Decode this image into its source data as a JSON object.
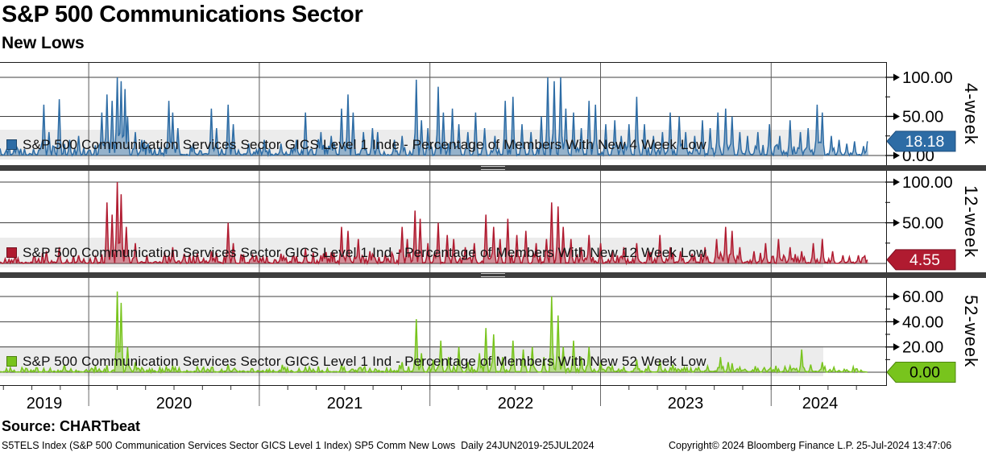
{
  "header": {
    "title": "S&P 500 Communications Sector",
    "subtitle": "New Lows"
  },
  "x_axis": {
    "year_labels": [
      "2019",
      "2020",
      "2021",
      "2022",
      "2023",
      "2024"
    ],
    "start_decimal_year": 2019.48,
    "end_decimal_year": 2024.57,
    "range_text": "24JUN2019-25JUL2024",
    "minor_tick_interval_years": 0.1667
  },
  "chart_data": [
    {
      "type": "area",
      "panel_label": "4-week",
      "legend": "S&P 500 Communication Services Sector GICS Level 1 Inde - Percentage of Members With New 4 Week Low",
      "line_color": "#2d6ca5",
      "fill_opacity": 0.45,
      "tag_border": "#1d4d7c",
      "tag_text_color": "#ffffff",
      "tag_label": "18.18",
      "last_value": 18.18,
      "x_unit": "decimal_year",
      "ylim": [
        0,
        118.5
      ],
      "yticks": [
        {
          "v": 100,
          "label": "100.00"
        },
        {
          "v": 50,
          "label": "50.00"
        },
        {
          "v": 0,
          "label": "0.00"
        }
      ],
      "minor_yticks": [
        75,
        25
      ],
      "noise_amp": 1.0,
      "keypoints": [
        [
          2019.74,
          65
        ],
        [
          2019.77,
          30
        ],
        [
          2019.83,
          72
        ],
        [
          2019.89,
          20
        ],
        [
          2019.94,
          25
        ],
        [
          2020.08,
          55
        ],
        [
          2020.11,
          78
        ],
        [
          2020.14,
          70
        ],
        [
          2020.17,
          100
        ],
        [
          2020.19,
          95
        ],
        [
          2020.21,
          85
        ],
        [
          2020.23,
          50
        ],
        [
          2020.27,
          30
        ],
        [
          2020.31,
          20
        ],
        [
          2020.47,
          70
        ],
        [
          2020.49,
          55
        ],
        [
          2020.52,
          35
        ],
        [
          2020.61,
          15
        ],
        [
          2020.72,
          60
        ],
        [
          2020.75,
          35
        ],
        [
          2020.82,
          65
        ],
        [
          2020.85,
          40
        ],
        [
          2020.94,
          15
        ],
        [
          2021.03,
          20
        ],
        [
          2021.13,
          15
        ],
        [
          2021.22,
          20
        ],
        [
          2021.27,
          55
        ],
        [
          2021.36,
          30
        ],
        [
          2021.42,
          25
        ],
        [
          2021.48,
          60
        ],
        [
          2021.52,
          78
        ],
        [
          2021.55,
          55
        ],
        [
          2021.61,
          30
        ],
        [
          2021.66,
          35
        ],
        [
          2021.69,
          30
        ],
        [
          2021.79,
          20
        ],
        [
          2021.84,
          25
        ],
        [
          2021.92,
          97
        ],
        [
          2021.95,
          45
        ],
        [
          2021.99,
          35
        ],
        [
          2022.05,
          88
        ],
        [
          2022.08,
          55
        ],
        [
          2022.13,
          60
        ],
        [
          2022.17,
          40
        ],
        [
          2022.22,
          30
        ],
        [
          2022.27,
          55
        ],
        [
          2022.32,
          35
        ],
        [
          2022.38,
          25
        ],
        [
          2022.44,
          70
        ],
        [
          2022.49,
          75
        ],
        [
          2022.54,
          40
        ],
        [
          2022.59,
          30
        ],
        [
          2022.65,
          50
        ],
        [
          2022.69,
          100
        ],
        [
          2022.73,
          95
        ],
        [
          2022.77,
          100
        ],
        [
          2022.8,
          60
        ],
        [
          2022.84,
          55
        ],
        [
          2022.89,
          35
        ],
        [
          2022.93,
          70
        ],
        [
          2022.97,
          65
        ],
        [
          2023.03,
          40
        ],
        [
          2023.08,
          45
        ],
        [
          2023.12,
          25
        ],
        [
          2023.17,
          40
        ],
        [
          2023.21,
          75
        ],
        [
          2023.26,
          40
        ],
        [
          2023.31,
          25
        ],
        [
          2023.36,
          30
        ],
        [
          2023.41,
          55
        ],
        [
          2023.46,
          50
        ],
        [
          2023.5,
          30
        ],
        [
          2023.55,
          25
        ],
        [
          2023.6,
          45
        ],
        [
          2023.64,
          35
        ],
        [
          2023.69,
          55
        ],
        [
          2023.73,
          60
        ],
        [
          2023.77,
          50
        ],
        [
          2023.82,
          30
        ],
        [
          2023.86,
          25
        ],
        [
          2023.92,
          30
        ],
        [
          2023.99,
          40
        ],
        [
          2024.05,
          25
        ],
        [
          2024.11,
          45
        ],
        [
          2024.17,
          30
        ],
        [
          2024.22,
          35
        ],
        [
          2024.27,
          65
        ],
        [
          2024.3,
          55
        ],
        [
          2024.35,
          25
        ],
        [
          2024.4,
          20
        ],
        [
          2024.44,
          15
        ],
        [
          2024.49,
          18
        ],
        [
          2024.54,
          12
        ],
        [
          2024.57,
          18.18
        ]
      ]
    },
    {
      "type": "area",
      "panel_label": "12-week",
      "legend": "S&P 500 Communication Services Sector GICS Level 1 Ind - Percentage of Members With New 12 Week Low",
      "line_color": "#b01b30",
      "fill_opacity": 0.45,
      "tag_border": "#7c0f22",
      "tag_text_color": "#ffffff",
      "tag_label": "4.55",
      "last_value": 4.55,
      "x_unit": "decimal_year",
      "ylim": [
        0,
        113.9
      ],
      "yticks": [
        {
          "v": 100,
          "label": "100.00"
        },
        {
          "v": 50,
          "label": "50.00"
        },
        {
          "v": 0,
          "label": ""
        }
      ],
      "minor_yticks": [
        75,
        25
      ],
      "noise_amp": 0.9,
      "keypoints": [
        [
          2019.75,
          15
        ],
        [
          2019.83,
          20
        ],
        [
          2019.94,
          10
        ],
        [
          2020.11,
          75
        ],
        [
          2020.14,
          60
        ],
        [
          2020.17,
          100
        ],
        [
          2020.19,
          85
        ],
        [
          2020.22,
          45
        ],
        [
          2020.27,
          25
        ],
        [
          2020.49,
          20
        ],
        [
          2020.56,
          12
        ],
        [
          2020.72,
          15
        ],
        [
          2020.82,
          50
        ],
        [
          2020.85,
          25
        ],
        [
          2020.98,
          10
        ],
        [
          2021.13,
          12
        ],
        [
          2021.27,
          18
        ],
        [
          2021.36,
          10
        ],
        [
          2021.48,
          45
        ],
        [
          2021.52,
          40
        ],
        [
          2021.58,
          30
        ],
        [
          2021.65,
          15
        ],
        [
          2021.74,
          12
        ],
        [
          2021.84,
          45
        ],
        [
          2021.87,
          30
        ],
        [
          2021.91,
          65
        ],
        [
          2021.94,
          55
        ],
        [
          2021.99,
          25
        ],
        [
          2022.05,
          50
        ],
        [
          2022.1,
          35
        ],
        [
          2022.14,
          30
        ],
        [
          2022.21,
          20
        ],
        [
          2022.26,
          25
        ],
        [
          2022.33,
          60
        ],
        [
          2022.37,
          45
        ],
        [
          2022.41,
          30
        ],
        [
          2022.46,
          55
        ],
        [
          2022.51,
          35
        ],
        [
          2022.56,
          40
        ],
        [
          2022.62,
          25
        ],
        [
          2022.68,
          30
        ],
        [
          2022.71,
          75
        ],
        [
          2022.75,
          70
        ],
        [
          2022.78,
          45
        ],
        [
          2022.83,
          30
        ],
        [
          2022.89,
          20
        ],
        [
          2022.93,
          35
        ],
        [
          2023.0,
          25
        ],
        [
          2023.07,
          15
        ],
        [
          2023.14,
          20
        ],
        [
          2023.21,
          25
        ],
        [
          2023.28,
          15
        ],
        [
          2023.35,
          35
        ],
        [
          2023.41,
          20
        ],
        [
          2023.47,
          15
        ],
        [
          2023.54,
          12
        ],
        [
          2023.61,
          20
        ],
        [
          2023.68,
          30
        ],
        [
          2023.73,
          45
        ],
        [
          2023.77,
          40
        ],
        [
          2023.82,
          20
        ],
        [
          2023.9,
          15
        ],
        [
          2023.97,
          25
        ],
        [
          2024.04,
          30
        ],
        [
          2024.11,
          20
        ],
        [
          2024.18,
          15
        ],
        [
          2024.25,
          25
        ],
        [
          2024.3,
          30
        ],
        [
          2024.36,
          15
        ],
        [
          2024.42,
          10
        ],
        [
          2024.46,
          8
        ],
        [
          2024.51,
          10
        ],
        [
          2024.57,
          4.55
        ]
      ]
    },
    {
      "type": "area",
      "panel_label": "52-week",
      "legend": "S&P 500 Communication Services Sector GICS Level 1 Ind - Percentage of Members With New 52 Week Low",
      "line_color": "#78c41d",
      "fill_opacity": 0.45,
      "tag_border": "#4f860f",
      "tag_text_color": "#000000",
      "tag_label": "0.00",
      "last_value": 0,
      "x_unit": "decimal_year",
      "ylim": [
        0,
        74.7
      ],
      "yticks": [
        {
          "v": 60,
          "label": "60.00"
        },
        {
          "v": 40,
          "label": "40.00"
        },
        {
          "v": 20,
          "label": "20.00"
        },
        {
          "v": 0,
          "label": ""
        }
      ],
      "minor_yticks": [
        50,
        30,
        10
      ],
      "noise_amp": 0.32,
      "keypoints": [
        [
          2020.17,
          64
        ],
        [
          2020.19,
          55
        ],
        [
          2020.23,
          20
        ],
        [
          2020.27,
          8
        ],
        [
          2020.49,
          5
        ],
        [
          2020.82,
          6
        ],
        [
          2021.27,
          4
        ],
        [
          2021.48,
          6
        ],
        [
          2021.65,
          3
        ],
        [
          2021.84,
          8
        ],
        [
          2021.92,
          42
        ],
        [
          2021.95,
          15
        ],
        [
          2022.02,
          10
        ],
        [
          2022.06,
          25
        ],
        [
          2022.11,
          12
        ],
        [
          2022.17,
          20
        ],
        [
          2022.22,
          8
        ],
        [
          2022.29,
          15
        ],
        [
          2022.33,
          35
        ],
        [
          2022.37,
          30
        ],
        [
          2022.43,
          12
        ],
        [
          2022.49,
          25
        ],
        [
          2022.55,
          18
        ],
        [
          2022.6,
          20
        ],
        [
          2022.67,
          12
        ],
        [
          2022.71,
          60
        ],
        [
          2022.75,
          45
        ],
        [
          2022.78,
          20
        ],
        [
          2022.84,
          25
        ],
        [
          2022.89,
          12
        ],
        [
          2022.93,
          20
        ],
        [
          2023.0,
          8
        ],
        [
          2023.07,
          5
        ],
        [
          2023.14,
          4
        ],
        [
          2023.21,
          10
        ],
        [
          2023.28,
          5
        ],
        [
          2023.35,
          10
        ],
        [
          2023.42,
          6
        ],
        [
          2023.49,
          4
        ],
        [
          2023.56,
          3
        ],
        [
          2023.63,
          5
        ],
        [
          2023.7,
          12
        ],
        [
          2023.75,
          8
        ],
        [
          2023.82,
          4
        ],
        [
          2023.92,
          3
        ],
        [
          2024.01,
          2
        ],
        [
          2024.11,
          5
        ],
        [
          2024.18,
          18
        ],
        [
          2024.23,
          6
        ],
        [
          2024.3,
          8
        ],
        [
          2024.37,
          4
        ],
        [
          2024.44,
          2
        ],
        [
          2024.57,
          0
        ]
      ]
    }
  ],
  "footer": {
    "source": "Source: CHARTbeat",
    "left": "S5TELS Index (S&P 500 Communication Services Sector GICS Level 1 Index) SP5 Comm New Lows  Daily 24JUN2019-25JUL2024",
    "copyright": "Copyright© 2024 Bloomberg Finance L.P.",
    "timestamp": "25-Jul-2024 13:47:06"
  }
}
